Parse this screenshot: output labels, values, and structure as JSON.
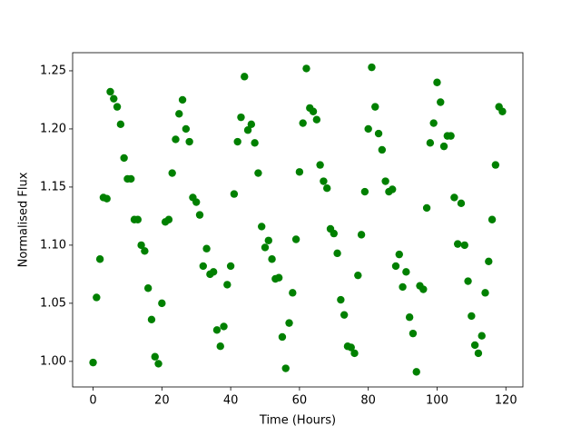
{
  "chart_data": {
    "type": "scatter",
    "xlabel": "Time (Hours)",
    "ylabel": "Normalised Flux",
    "color": "#008000",
    "x": [
      0,
      1,
      2,
      3,
      4,
      5,
      6,
      7,
      8,
      9,
      10,
      11,
      12,
      13,
      14,
      15,
      16,
      17,
      18,
      19,
      20,
      21,
      22,
      23,
      24,
      25,
      26,
      27,
      28,
      29,
      30,
      31,
      32,
      33,
      34,
      35,
      36,
      37,
      38,
      39,
      40,
      41,
      42,
      43,
      44,
      45,
      46,
      47,
      48,
      49,
      50,
      51,
      52,
      53,
      54,
      55,
      56,
      57,
      58,
      59,
      60,
      61,
      62,
      63,
      64,
      65,
      66,
      67,
      68,
      69,
      70,
      71,
      72,
      73,
      74,
      75,
      76,
      77,
      78,
      79,
      80,
      81,
      82,
      83,
      84,
      85,
      86,
      87,
      88,
      89,
      90,
      91,
      92,
      93,
      94,
      95,
      96,
      97,
      98,
      99,
      100,
      101,
      102,
      103,
      104,
      105,
      106,
      107,
      108,
      109,
      110,
      111,
      112,
      113,
      114,
      115,
      116,
      117,
      118,
      119
    ],
    "values": [
      0.999,
      1.055,
      1.088,
      1.141,
      1.14,
      1.232,
      1.226,
      1.219,
      1.204,
      1.175,
      1.157,
      1.157,
      1.122,
      1.122,
      1.1,
      1.095,
      1.063,
      1.036,
      1.004,
      0.998,
      1.05,
      1.12,
      1.122,
      1.162,
      1.191,
      1.213,
      1.225,
      1.2,
      1.189,
      1.141,
      1.137,
      1.126,
      1.082,
      1.097,
      1.075,
      1.077,
      1.027,
      1.013,
      1.03,
      1.066,
      1.082,
      1.144,
      1.189,
      1.21,
      1.245,
      1.199,
      1.204,
      1.188,
      1.162,
      1.116,
      1.098,
      1.104,
      1.088,
      1.071,
      1.072,
      1.021,
      0.994,
      1.033,
      1.059,
      1.105,
      1.163,
      1.205,
      1.252,
      1.218,
      1.215,
      1.208,
      1.169,
      1.155,
      1.149,
      1.114,
      1.11,
      1.093,
      1.053,
      1.04,
      1.013,
      1.012,
      1.007,
      1.074,
      1.109,
      1.146,
      1.2,
      1.253,
      1.219,
      1.196,
      1.182,
      1.155,
      1.146,
      1.148,
      1.082,
      1.092,
      1.064,
      1.077,
      1.038,
      1.024,
      0.991,
      1.065,
      1.062,
      1.132,
      1.188,
      1.205,
      1.24,
      1.223,
      1.185,
      1.194,
      1.194,
      1.141,
      1.101,
      1.136,
      1.1,
      1.069,
      1.039,
      1.014,
      1.007,
      1.022,
      1.059,
      1.086,
      1.122,
      1.169,
      1.219,
      1.215
    ],
    "xlim": [
      -5.95,
      124.95
    ],
    "xticks": [
      0,
      20,
      40,
      60,
      80,
      100,
      120
    ],
    "ylim": [
      0.978,
      1.2656
    ],
    "yticks": [
      {
        "value": 1.0,
        "label": "1.00"
      },
      1.05,
      {
        "value": 1.1,
        "label": "1.10"
      },
      1.15,
      {
        "value": 1.2,
        "label": "1.20"
      },
      1.25
    ],
    "grid": false
  }
}
